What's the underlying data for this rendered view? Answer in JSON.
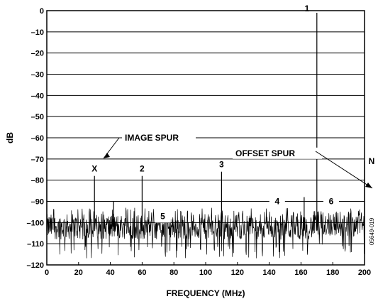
{
  "chart_data": {
    "type": "line",
    "xlabel": "FREQUENCY (MHz)",
    "ylabel": "dB",
    "xlim": [
      0,
      200
    ],
    "ylim": [
      -120,
      0
    ],
    "xticks": [
      "0",
      "20",
      "40",
      "60",
      "80",
      "100",
      "120",
      "140",
      "160",
      "180",
      "200"
    ],
    "yticks": [
      "0",
      "–10",
      "–20",
      "–30",
      "–40",
      "–50",
      "–60",
      "–70",
      "–80",
      "–90",
      "–100",
      "–110",
      "–120"
    ],
    "grid": true,
    "noise_floor": {
      "center_db": -102,
      "range_db": [
        -117,
        -93
      ]
    },
    "spurs": [
      {
        "x": 0,
        "y": -75
      },
      {
        "x": 30,
        "y": -78
      },
      {
        "x": 42,
        "y": -90
      },
      {
        "x": 60,
        "y": -78
      },
      {
        "x": 110,
        "y": -76
      },
      {
        "x": 162,
        "y": -88
      },
      {
        "x": 170,
        "y": -1
      },
      {
        "x": 200,
        "y": -71
      }
    ],
    "annotations": [
      {
        "label": "1",
        "x": 170,
        "y": -1
      },
      {
        "label": "2",
        "x": 60,
        "y": -78
      },
      {
        "label": "3",
        "x": 110,
        "y": -76
      },
      {
        "label": "4",
        "x": 145,
        "y": -90
      },
      {
        "label": "5",
        "x": 73,
        "y": -97
      },
      {
        "label": "6",
        "x": 179,
        "y": -90
      },
      {
        "label": "X",
        "x": 30,
        "y": -78
      },
      {
        "label": "N",
        "x": 200,
        "y": -71
      }
    ],
    "callouts": {
      "image_spur": "IMAGE SPUR",
      "offset_spur": "OFFSET SPUR"
    },
    "figure_id": "05649-019"
  }
}
